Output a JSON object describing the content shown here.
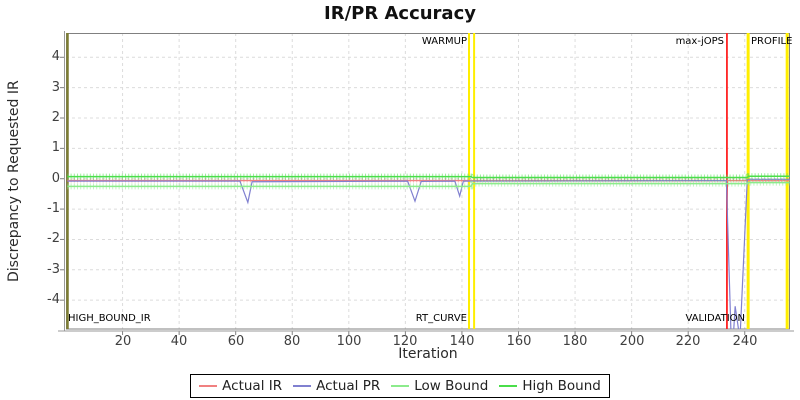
{
  "chart_data": {
    "type": "line",
    "title": "IR/PR Accuracy",
    "xlabel": "Iteration",
    "ylabel": "Discrepancy to Requested IR",
    "xlim": [
      0,
      256
    ],
    "ylim": [
      -4.95,
      4.8
    ],
    "grid": true,
    "legend_position": "bottom",
    "x_ticks": [
      20,
      40,
      60,
      80,
      100,
      120,
      140,
      160,
      180,
      200,
      220,
      240
    ],
    "y_ticks": [
      4,
      3,
      2,
      1,
      0,
      -1,
      -2,
      -3,
      -4
    ],
    "series": [
      {
        "name": "Actual IR",
        "color": "#f08080",
        "width": 1.4,
        "marker": "tick",
        "tick_w": 4,
        "points": [
          [
            0.5,
            -0.06
          ],
          [
            255.9,
            -0.06
          ]
        ]
      },
      {
        "name": "Actual PR",
        "color": "#8080d0",
        "width": 1.2,
        "marker": "none",
        "points": [
          [
            0.5,
            -0.08
          ],
          [
            61.5,
            -0.08
          ],
          [
            64.3,
            -0.78
          ],
          [
            65.8,
            -0.1
          ],
          [
            120.8,
            -0.08
          ],
          [
            123.4,
            -0.74
          ],
          [
            125.6,
            -0.09
          ],
          [
            137.5,
            -0.08
          ],
          [
            139.2,
            -0.57
          ],
          [
            140.5,
            -0.08
          ],
          [
            233.5,
            -0.06
          ],
          [
            235.2,
            -5.3
          ],
          [
            235.9,
            -5.3
          ],
          [
            236.6,
            -4.2
          ],
          [
            237.4,
            -4.7
          ],
          [
            238.3,
            -5.3
          ],
          [
            240.9,
            -0.02
          ],
          [
            255.9,
            -0.02
          ]
        ]
      },
      {
        "name": "Low Bound",
        "color": "#8ceb8c",
        "width": 1.5,
        "marker": "tick",
        "tick_w": 6,
        "points": [
          [
            0.5,
            -0.25
          ],
          [
            143.2,
            -0.25
          ],
          [
            143.7,
            -0.16
          ],
          [
            240.9,
            -0.16
          ],
          [
            241.3,
            -0.13
          ],
          [
            255.9,
            -0.13
          ]
        ]
      },
      {
        "name": "High Bound",
        "color": "#4ade4a",
        "width": 1.5,
        "marker": "tick",
        "tick_w": 6,
        "points": [
          [
            0.5,
            0.07
          ],
          [
            143.2,
            0.07
          ],
          [
            143.7,
            0.04
          ],
          [
            240.9,
            0.04
          ],
          [
            241.3,
            0.08
          ],
          [
            255.9,
            0.08
          ]
        ]
      }
    ],
    "event_lines": [
      {
        "x": 142.5,
        "color": "#ffee00",
        "width": 2
      },
      {
        "x": 144.3,
        "color": "#ffee00",
        "width": 2
      },
      {
        "x": 233.7,
        "color": "#ff2222",
        "width": 1.8
      },
      {
        "x": 241.2,
        "color": "#ffee00",
        "width": 3
      },
      {
        "x": 255.0,
        "color": "#ffee00",
        "width": 3
      }
    ]
  },
  "annotations": {
    "warmup": "WARMUP",
    "max_jops": "max-jOPS",
    "profile": "PROFILE",
    "high_bound_ir": "HIGH_BOUND_IR",
    "rt_curve": "RT_CURVE",
    "validation": "VALIDATION"
  },
  "legend": {
    "items": [
      {
        "label": "Actual IR",
        "color": "#f08080"
      },
      {
        "label": "Actual PR",
        "color": "#8080d0"
      },
      {
        "label": "Low Bound",
        "color": "#8ceb8c"
      },
      {
        "label": "High Bound",
        "color": "#4ade4a"
      }
    ]
  }
}
